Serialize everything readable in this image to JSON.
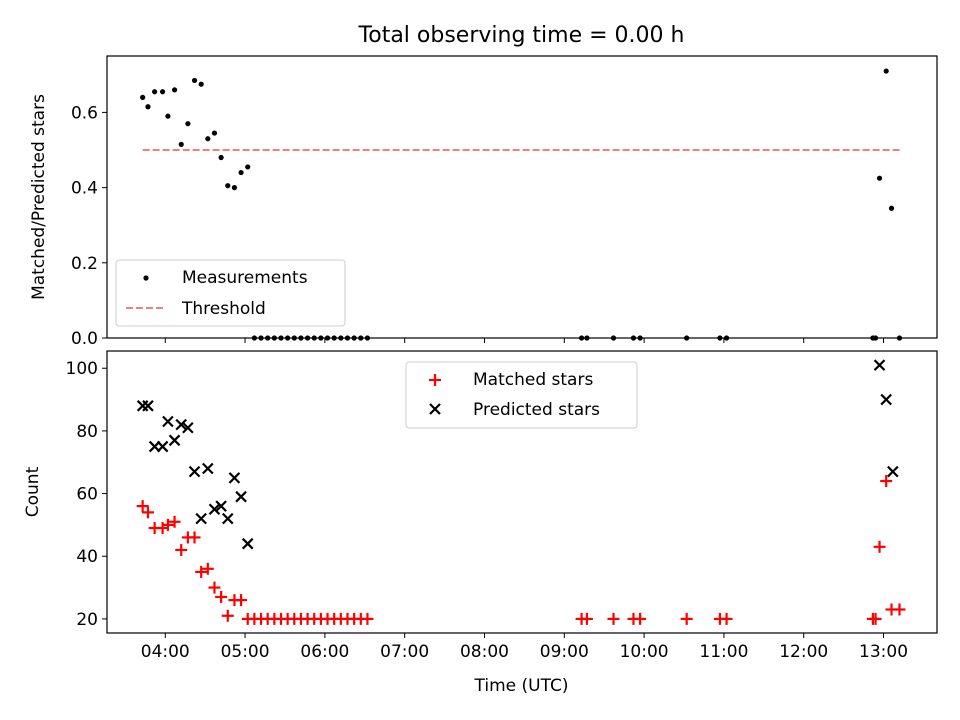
{
  "title": "Total observing time = 0.00 h",
  "chart_data": [
    {
      "type": "scatter",
      "ylabel": "Matched/Predicted stars",
      "xlim_hours": [
        3.27,
        13.67
      ],
      "ylim": [
        0,
        0.75
      ],
      "yticks": [
        0.0,
        0.2,
        0.4,
        0.6
      ],
      "ytick_labels": [
        "0.0",
        "0.2",
        "0.4",
        "0.6"
      ],
      "grid": false,
      "legend_position": "lower-left",
      "legend": {
        "measurements": "Measurements",
        "threshold": "Threshold"
      },
      "threshold": {
        "value": 0.5,
        "x_start": "03:43",
        "x_end": "13:13",
        "color": "#f08080"
      },
      "measurements": {
        "color": "#000000",
        "x": [
          "03:43",
          "03:47",
          "03:52",
          "03:58",
          "04:02",
          "04:07",
          "04:12",
          "04:17",
          "04:22",
          "04:27",
          "04:32",
          "04:37",
          "04:42",
          "04:47",
          "04:52",
          "04:57",
          "05:02",
          "05:07",
          "05:12",
          "05:17",
          "05:22",
          "05:27",
          "05:32",
          "05:37",
          "05:42",
          "05:47",
          "05:52",
          "05:57",
          "06:02",
          "06:07",
          "06:12",
          "06:17",
          "06:22",
          "06:27",
          "06:32",
          "09:13",
          "09:17",
          "09:37",
          "09:52",
          "09:57",
          "10:32",
          "10:57",
          "11:02",
          "12:52",
          "12:54",
          "12:57",
          "13:02",
          "13:06",
          "13:12"
        ],
        "y": [
          0.64,
          0.615,
          0.655,
          0.655,
          0.59,
          0.66,
          0.515,
          0.57,
          0.685,
          0.675,
          0.53,
          0.545,
          0.48,
          0.405,
          0.4,
          0.44,
          0.455,
          0,
          0,
          0,
          0,
          0,
          0,
          0,
          0,
          0,
          0,
          0,
          0,
          0,
          0,
          0,
          0,
          0,
          0,
          0,
          0,
          0,
          0,
          0,
          0,
          0,
          0,
          0,
          0,
          0.425,
          0.71,
          0.345,
          0
        ]
      }
    },
    {
      "type": "scatter",
      "ylabel": "Count",
      "xlabel": "Time (UTC)",
      "xlim_hours": [
        3.27,
        13.67
      ],
      "ylim": [
        15.5,
        105.5
      ],
      "yticks": [
        20,
        40,
        60,
        80,
        100
      ],
      "ytick_labels": [
        "20",
        "40",
        "60",
        "80",
        "100"
      ],
      "xticks": [
        "04:00",
        "05:00",
        "06:00",
        "07:00",
        "08:00",
        "09:00",
        "10:00",
        "11:00",
        "12:00",
        "13:00"
      ],
      "grid": false,
      "legend_position": "upper-center",
      "legend": {
        "matched": "Matched stars",
        "predicted": "Predicted stars"
      },
      "matched": {
        "color": "#ff0000",
        "marker": "plus",
        "x": [
          "03:43",
          "03:47",
          "03:52",
          "03:58",
          "04:02",
          "04:07",
          "04:12",
          "04:17",
          "04:22",
          "04:27",
          "04:32",
          "04:37",
          "04:42",
          "04:47",
          "04:52",
          "04:57",
          "05:02",
          "05:07",
          "05:12",
          "05:17",
          "05:22",
          "05:27",
          "05:32",
          "05:37",
          "05:42",
          "05:47",
          "05:52",
          "05:57",
          "06:02",
          "06:07",
          "06:12",
          "06:17",
          "06:22",
          "06:27",
          "06:32",
          "09:13",
          "09:17",
          "09:37",
          "09:52",
          "09:57",
          "10:32",
          "10:57",
          "11:02",
          "12:52",
          "12:54",
          "12:57",
          "13:02",
          "13:06",
          "13:12"
        ],
        "y": [
          56,
          54,
          49,
          49,
          50,
          51,
          42,
          46,
          46,
          35,
          36,
          30,
          27,
          21,
          26,
          26,
          20,
          20,
          20,
          20,
          20,
          20,
          20,
          20,
          20,
          20,
          20,
          20,
          20,
          20,
          20,
          20,
          20,
          20,
          20,
          20,
          20,
          20,
          20,
          20,
          20,
          20,
          20,
          20,
          20,
          43,
          64,
          23,
          23
        ]
      },
      "predicted": {
        "color": "#000000",
        "marker": "x",
        "x": [
          "03:43",
          "03:47",
          "03:52",
          "03:58",
          "04:02",
          "04:07",
          "04:12",
          "04:17",
          "04:22",
          "04:27",
          "04:32",
          "04:37",
          "04:42",
          "04:47",
          "04:52",
          "04:57",
          "05:02",
          "12:57",
          "13:02",
          "13:07"
        ],
        "y": [
          88,
          88,
          75,
          75,
          83,
          77,
          82,
          81,
          67,
          52,
          68,
          55,
          56,
          52,
          65,
          59,
          44,
          101,
          90,
          67
        ]
      }
    }
  ]
}
